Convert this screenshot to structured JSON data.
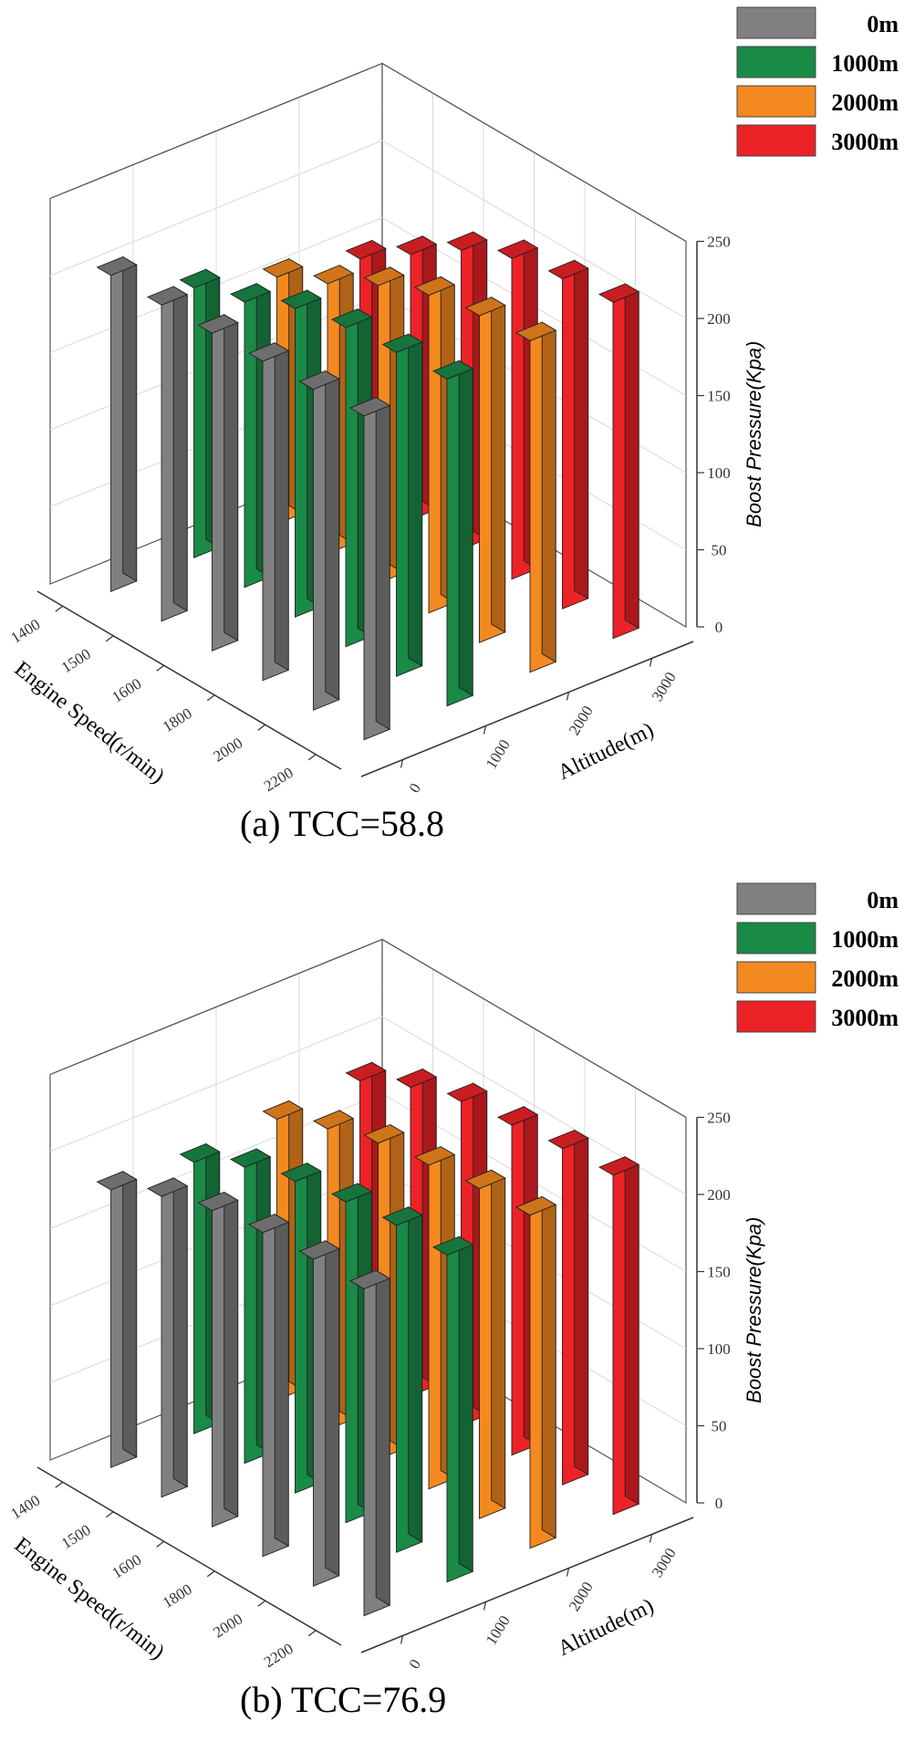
{
  "chart_data": [
    {
      "type": "bar3d",
      "caption": "(a)  TCC=58.8",
      "xlabel": "Engine Speed(r/min)",
      "ylabel": "Altitude(m)",
      "zlabel": "Boost Pressure(Kpa)",
      "engine_speeds": [
        "2200",
        "2000",
        "1800",
        "1600",
        "1500",
        "1400"
      ],
      "altitude_ticks": [
        "0",
        "1000",
        "2000",
        "3000"
      ],
      "z_ticks": [
        "0",
        "50",
        "100",
        "150",
        "200",
        "250"
      ],
      "zlim": [
        0,
        250
      ],
      "series": [
        {
          "name": "0m",
          "color": "#808080",
          "values": [
            210,
            208,
            207,
            206,
            205,
            205
          ]
        },
        {
          "name": "1000m",
          "color": "#1a8a47",
          "values": [
            212,
            210,
            207,
            200,
            185,
            175
          ]
        },
        {
          "name": "2000m",
          "color": "#f4891f",
          "values": [
            215,
            212,
            206,
            193,
            175,
            160
          ]
        },
        {
          "name": "3000m",
          "color": "#ec2227",
          "values": [
            218,
            214,
            208,
            194,
            172,
            150
          ]
        }
      ]
    },
    {
      "type": "bar3d",
      "caption": "(b)  TCC=76.9",
      "xlabel": "Engine Speed(r/min)",
      "ylabel": "Altitude(m)",
      "zlabel": "Boost Pressure(Kpa)",
      "engine_speeds": [
        "2200",
        "2000",
        "1800",
        "1600",
        "1500",
        "1400"
      ],
      "altitude_ticks": [
        "0",
        "1000",
        "2000",
        "3000"
      ],
      "z_ticks": [
        "0",
        "50",
        "100",
        "150",
        "200",
        "250"
      ],
      "zlim": [
        0,
        250
      ],
      "series": [
        {
          "name": "0m",
          "color": "#808080",
          "values": [
            212,
            212,
            210,
            205,
            195,
            180
          ]
        },
        {
          "name": "1000m",
          "color": "#1a8a47",
          "values": [
            212,
            212,
            208,
            202,
            192,
            176
          ]
        },
        {
          "name": "2000m",
          "color": "#f4891f",
          "values": [
            216,
            214,
            210,
            205,
            195,
            182
          ]
        },
        {
          "name": "3000m",
          "color": "#ec2227",
          "values": [
            220,
            218,
            214,
            210,
            200,
            185
          ]
        }
      ]
    }
  ]
}
